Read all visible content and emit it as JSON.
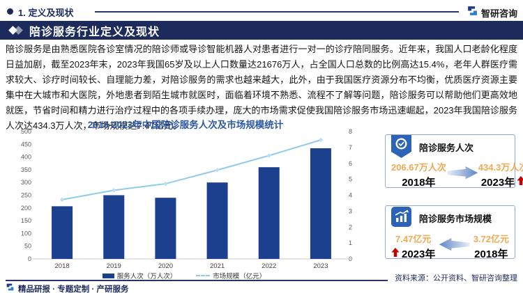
{
  "header": {
    "section_label": "1. 定义及现状",
    "brand": "智研咨询"
  },
  "banner": {
    "title": "陪诊服务行业定义及现状"
  },
  "article": {
    "paragraph": "陪诊服务是由熟悉医院各诊室情况的陪诊师或导诊智能机器人对患者进行一对一的诊疗陪同服务。近年来，我国人口老龄化程度日益加剧，截至2023年末，2023年我国65岁及以上人口数量达21676万人，占全国人口总数的比例高达15.4%，老年人群医疗需求较大、诊疗时间较长、自理能力差，对陪诊服务的需求也越来越大，此外，由于我国医疗资源分布不均衡，优质医疗资源主要集中在大城市和大医院，外地患者到陌生城市就医时，面临着环境不熟悉、流程不了解等问题，陪诊服务可以帮助他们更高效地就医，节省时间和精力进行治疗过程中的各项手续办理，庞大的市场需求促使我国陪诊服务市场迅速崛起，2023年我国陪诊服务人次达434.3万人次，市场规模达7.47亿元。"
  },
  "chart_data": {
    "type": "bar",
    "title": "2018-2023年中国陪诊服务人次及市场规模统计",
    "categories": [
      "2018",
      "2019",
      "2020",
      "2021",
      "2022",
      "2023"
    ],
    "series": [
      {
        "name": "服务人次（万人次）",
        "type": "bar",
        "axis": "left",
        "color": "#1c3f8e",
        "values": [
          206.67,
          250,
          240,
          300,
          360,
          434.3
        ]
      },
      {
        "name": "市场规模（亿元）",
        "type": "line",
        "axis": "right",
        "color": "#90cbee",
        "values": [
          3.72,
          4.31,
          4.72,
          5.58,
          6.49,
          7.47
        ]
      }
    ],
    "left_axis": {
      "min": 0,
      "max": 500,
      "step": 50
    },
    "right_axis": {
      "min": 0,
      "max": 8,
      "step": 1
    },
    "grid": false,
    "legend_position": "bottom"
  },
  "cards": [
    {
      "title": "陪诊服务人次",
      "icon": "medal-icon",
      "from": {
        "value": "206.67万人次",
        "year": "2018年"
      },
      "to": {
        "value": "434.3万人次",
        "year": "2023年"
      },
      "trend": "up"
    },
    {
      "title": "陪诊服务市场规模",
      "icon": "trend-chart-icon",
      "from": {
        "value": "3.72亿元",
        "year": "2018年"
      },
      "to": {
        "value": "7.47亿元",
        "year": "2023年"
      },
      "trend": "up"
    }
  ],
  "footer": {
    "source": "资料来源：公开资料、智研咨询整理",
    "tagline": "精品研报 · 专题定制 · 产研服务"
  },
  "colors": {
    "navy": "#1c2b5c",
    "bar": "#1c3f8e",
    "line": "#90cbee",
    "marker": "#b9def6",
    "chart_title": "#2c57a7",
    "orange": "#f4a950",
    "red": "#c00000",
    "badge_blue": "#2c62b8",
    "card_border": "#8fa9dc"
  }
}
